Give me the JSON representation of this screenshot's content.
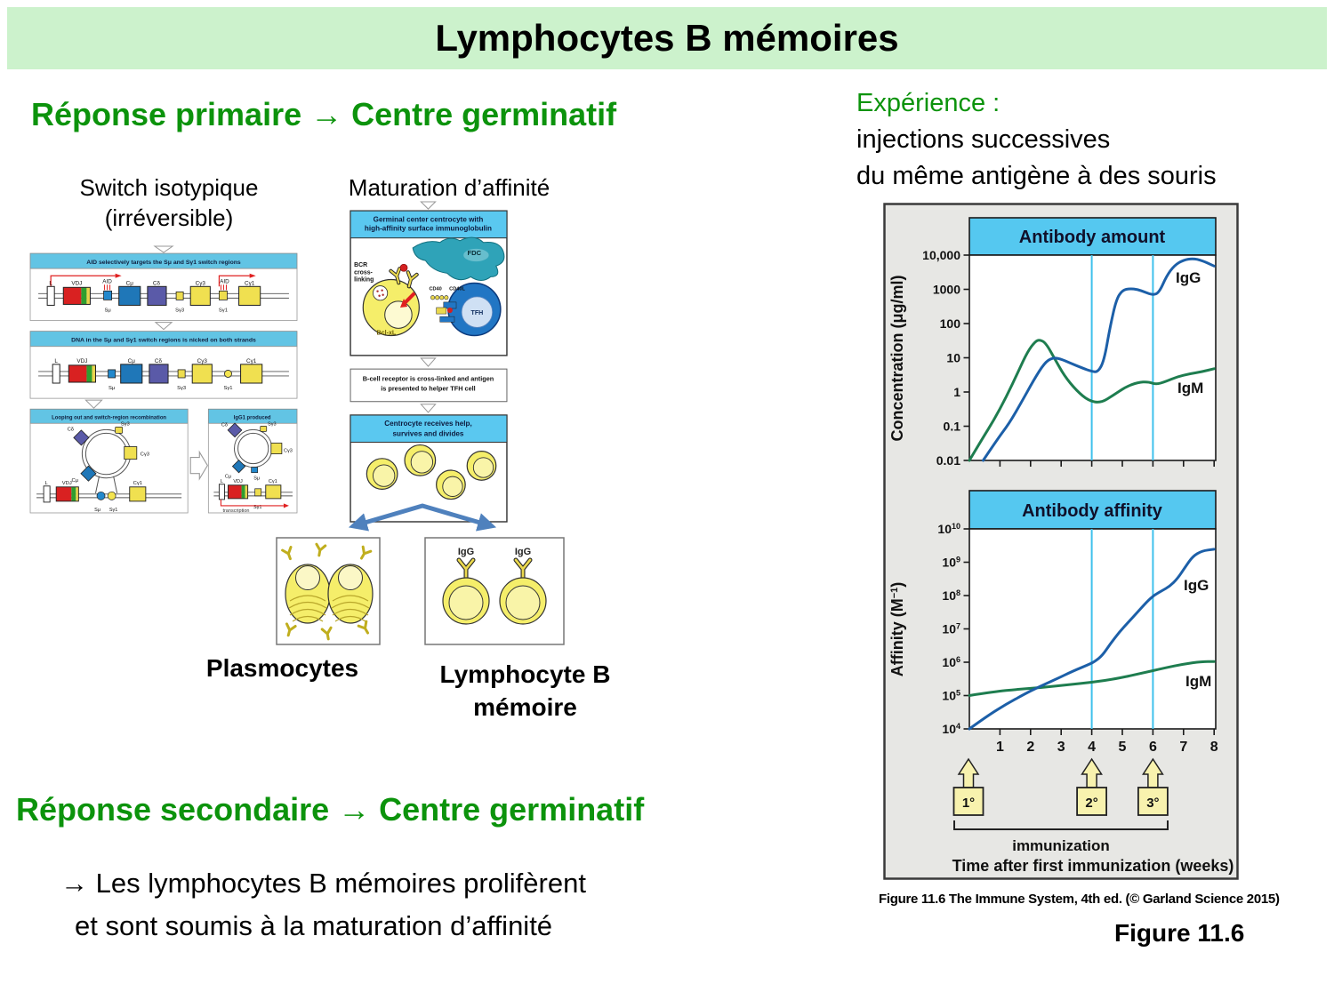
{
  "slide_title": "Lymphocytes B mémoires",
  "headings": {
    "primary": "Réponse primaire → Centre germinatif",
    "secondary": "Réponse secondaire → Centre germinatif"
  },
  "experiment": {
    "intro": "Expérience :",
    "line2": "injections successives",
    "line3": "du même antigène à des souris"
  },
  "labels": {
    "switch_1": "Switch isotypique",
    "switch_2": "(irréversible)",
    "maturation": "Maturation d’affinité",
    "plasmocytes": "Plasmocytes",
    "memory_1": "Lymphocyte B",
    "memory_2": "mémoire"
  },
  "conclusion": {
    "line1": "→ Les lymphocytes B mémoires prolifèrent",
    "line2": "et sont soumis à la maturation d’affinité"
  },
  "switch_diagram": {
    "header1": "AID selectively targets the Sμ and Sγ1 switch regions",
    "header2": "DNA in the Sμ and Sγ1 switch regions is nicked on both strands",
    "header3a": "Looping out and switch-region recombination",
    "header3b": "IgG1 produced",
    "transcription": "transcription",
    "seg": {
      "l": "L",
      "vdj": "VDJ",
      "aid": "AID",
      "cmu": "Cμ",
      "cdelta": "Cδ",
      "cg3": "Cγ3",
      "cg1": "Cγ1",
      "smu": "Sμ",
      "sg3": "Sγ3",
      "sg1": "Sγ1"
    }
  },
  "maturation_diagram": {
    "header1a": "Germinal center centrocyte with",
    "header1b": "high-affinity surface immunoglobulin",
    "fdc": "FDC",
    "bcr1": "BCR",
    "bcr2": "cross-",
    "bcr3": "linking",
    "cd40": "CD40",
    "cd40l": "CD40L",
    "bclxl": "Bcl-xL",
    "tfh": "TFH",
    "step2a": "B-cell receptor is cross-linked and antigen",
    "step2b": "is presented to helper TFH cell",
    "header3a": "Centrocyte receives help,",
    "header3b": "survives and divides",
    "igg": "IgG"
  },
  "figure": {
    "caption": "Figure 11.6 The Immune System, 4th ed. (© Garland Science 2015)",
    "label": "Figure 11.6",
    "immunization_label": "immunization",
    "xaxis_title": "Time after first immunization (weeks)",
    "injections": [
      "1°",
      "2°",
      "3°"
    ]
  },
  "chart_data": [
    {
      "type": "line",
      "title": "Antibody amount",
      "ylabel": "Concentration (μg/ml)",
      "yscale": "log",
      "ylim": [
        0.01,
        10000
      ],
      "ytick_labels": [
        "10,000",
        "1000",
        "100",
        "10",
        "1",
        "0.1",
        "0.01"
      ],
      "xlim": [
        0,
        8
      ],
      "xticks": [
        1,
        2,
        3,
        4,
        5,
        6,
        7,
        8
      ],
      "vlines": [
        4,
        6
      ],
      "legend_position": "inline-right",
      "series": [
        {
          "name": "IgM",
          "color": "#1e7d4f",
          "points": [
            [
              0,
              0.01
            ],
            [
              0.4,
              0.04
            ],
            [
              0.8,
              0.15
            ],
            [
              1.2,
              0.7
            ],
            [
              1.6,
              4
            ],
            [
              1.9,
              15
            ],
            [
              2.15,
              30
            ],
            [
              2.3,
              34
            ],
            [
              2.5,
              27
            ],
            [
              2.8,
              9
            ],
            [
              3.1,
              3
            ],
            [
              3.5,
              1.1
            ],
            [
              3.9,
              0.55
            ],
            [
              4.3,
              0.48
            ],
            [
              4.7,
              0.8
            ],
            [
              5.1,
              1.4
            ],
            [
              5.5,
              1.9
            ],
            [
              5.85,
              2.0
            ],
            [
              6.1,
              1.65
            ],
            [
              6.4,
              2.0
            ],
            [
              6.8,
              2.8
            ],
            [
              7.2,
              3.4
            ],
            [
              7.6,
              3.9
            ],
            [
              8,
              4.8
            ]
          ]
        },
        {
          "name": "IgG",
          "color": "#1c5fa8",
          "points": [
            [
              0.45,
              0.01
            ],
            [
              0.9,
              0.04
            ],
            [
              1.3,
              0.12
            ],
            [
              1.7,
              0.5
            ],
            [
              2.1,
              2.2
            ],
            [
              2.45,
              7
            ],
            [
              2.7,
              10
            ],
            [
              2.95,
              9.5
            ],
            [
              3.3,
              7
            ],
            [
              3.7,
              5
            ],
            [
              4.0,
              4
            ],
            [
              4.2,
              3.8
            ],
            [
              4.4,
              8
            ],
            [
              4.6,
              80
            ],
            [
              4.8,
              500
            ],
            [
              5.0,
              950
            ],
            [
              5.25,
              1050
            ],
            [
              5.5,
              1000
            ],
            [
              5.75,
              820
            ],
            [
              6.0,
              680
            ],
            [
              6.2,
              800
            ],
            [
              6.45,
              2500
            ],
            [
              6.7,
              5000
            ],
            [
              7.0,
              7200
            ],
            [
              7.3,
              8000
            ],
            [
              7.6,
              7000
            ],
            [
              8,
              4800
            ]
          ]
        }
      ]
    },
    {
      "type": "line",
      "title": "Antibody affinity",
      "ylabel_pre": "Affinity (M",
      "ylabel_sup": "−1",
      "ylabel_post": ")",
      "yscale": "log",
      "ylim": [
        10000,
        10000000000
      ],
      "yticks": [
        {
          "base": "10",
          "exp": "10"
        },
        {
          "base": "10",
          "exp": "9"
        },
        {
          "base": "10",
          "exp": "8"
        },
        {
          "base": "10",
          "exp": "7"
        },
        {
          "base": "10",
          "exp": "6"
        },
        {
          "base": "10",
          "exp": "5"
        },
        {
          "base": "10",
          "exp": "4"
        }
      ],
      "xlim": [
        0,
        8
      ],
      "xticks": [
        1,
        2,
        3,
        4,
        5,
        6,
        7,
        8
      ],
      "vlines": [
        4,
        6
      ],
      "legend_position": "inline-right",
      "series": [
        {
          "name": "IgM",
          "color": "#1e7d4f",
          "points": [
            [
              0,
              100000
            ],
            [
              0.8,
              130000
            ],
            [
              1.6,
              155000
            ],
            [
              2.4,
              175000
            ],
            [
              3.2,
              210000
            ],
            [
              4,
              250000
            ],
            [
              4.8,
              320000
            ],
            [
              5.6,
              460000
            ],
            [
              6.4,
              680000
            ],
            [
              7,
              880000
            ],
            [
              7.6,
              1050000
            ],
            [
              8,
              1050000
            ]
          ]
        },
        {
          "name": "IgG",
          "color": "#1c5fa8",
          "points": [
            [
              0,
              10000
            ],
            [
              0.6,
              25000
            ],
            [
              1.2,
              55000
            ],
            [
              1.8,
              110000
            ],
            [
              2.2,
              170000
            ],
            [
              2.8,
              300000
            ],
            [
              3.4,
              550000
            ],
            [
              3.9,
              850000
            ],
            [
              4.1,
              1050000
            ],
            [
              4.35,
              1600000
            ],
            [
              4.6,
              3500000
            ],
            [
              4.9,
              8000000
            ],
            [
              5.2,
              16000000
            ],
            [
              5.5,
              32000000
            ],
            [
              5.8,
              65000000
            ],
            [
              6.05,
              105000000
            ],
            [
              6.3,
              140000000
            ],
            [
              6.55,
              190000000
            ],
            [
              6.8,
              320000000
            ],
            [
              7.05,
              700000000
            ],
            [
              7.3,
              1500000000
            ],
            [
              7.6,
              2200000000
            ],
            [
              8,
              2450000000
            ]
          ]
        }
      ]
    }
  ],
  "colors": {
    "banner": "#ccf2cc",
    "heading_green": "#0c930c",
    "panel_header_blue": "#5ac8f0",
    "chart_header_blue": "#55c8f0",
    "igg": "#1c5fa8",
    "igm": "#1e7d4f",
    "vline_cyan": "#3fc1ec",
    "figure_bg": "#e7e7e4",
    "cell_yellow": "#f5ee6a",
    "injection_yellow": "#f8f2ae"
  }
}
